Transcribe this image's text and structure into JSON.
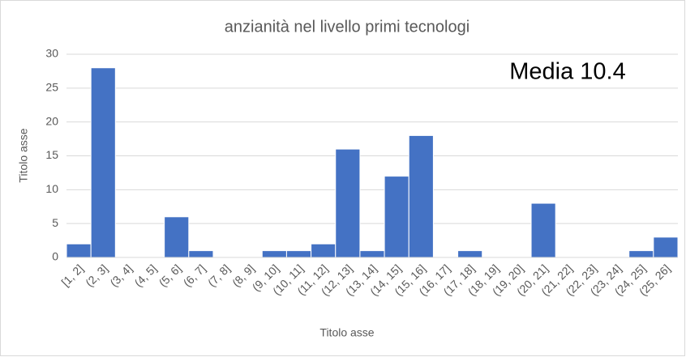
{
  "chart_data": {
    "type": "bar",
    "title": "anzianità nel livello primi tecnologi",
    "annotation": "Media 10.4",
    "x_label": "Titolo asse",
    "y_label": "Titolo asse",
    "categories": [
      "[1, 2]",
      "(2, 3]",
      "(3, 4]",
      "(4, 5]",
      "(5, 6]",
      "(6, 7]",
      "(7, 8]",
      "(8, 9]",
      "(9, 10]",
      "(10, 11]",
      "(11, 12]",
      "(12, 13]",
      "(13, 14]",
      "(14, 15]",
      "(15, 16]",
      "(16, 17]",
      "(17, 18]",
      "(18, 19]",
      "(19, 20]",
      "(20, 21]",
      "(21, 22]",
      "(22, 23]",
      "(23, 24]",
      "(24, 25]",
      "(25, 26]"
    ],
    "values": [
      2,
      28,
      0,
      0,
      6,
      1,
      0,
      0,
      1,
      1,
      2,
      16,
      1,
      12,
      18,
      0,
      1,
      0,
      0,
      8,
      0,
      0,
      0,
      1,
      3
    ],
    "color": "#4472c4",
    "ylim": [
      0,
      30
    ],
    "yticks": [
      0,
      5,
      10,
      15,
      20,
      25,
      30
    ],
    "grid": true
  }
}
